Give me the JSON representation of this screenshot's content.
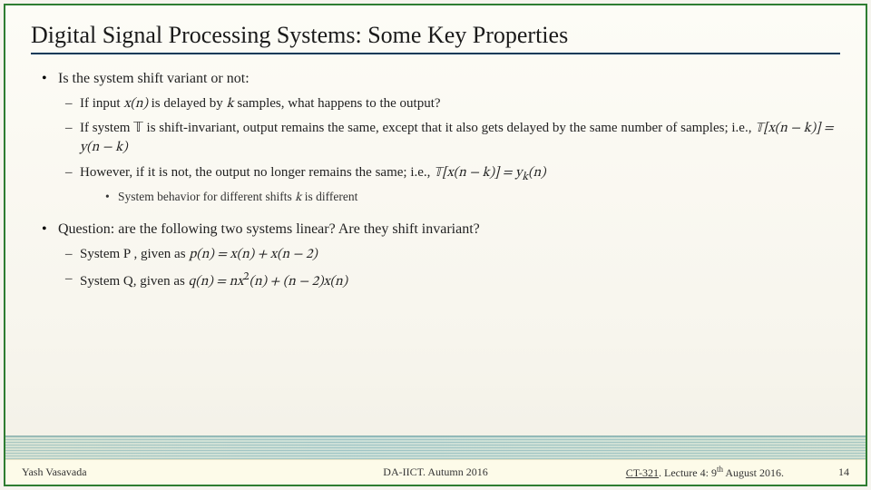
{
  "title": "Digital Signal Processing Systems: Some Key Properties",
  "bullets": {
    "b1": {
      "text": "Is the system shift variant or not:"
    },
    "b1_subs": {
      "s1_pre": "If input ",
      "s1_math1": "x(n)",
      "s1_mid": " is delayed by ",
      "s1_math2": "k",
      "s1_post": " samples, what happens to the output?",
      "s2_pre": "If system ",
      "s2_T": "𝕋",
      "s2_mid": " is shift-invariant, output remains the same, except that it also gets delayed by the same number of samples; i.e., ",
      "s2_eq": "𝕋[x(n − k)] = y(n − k)",
      "s3_pre": "However, if it is not, the output no longer remains the same; i.e., ",
      "s3_eq_left": "𝕋[x(n − k)] = ",
      "s3_eq_right": "y",
      "s3_eq_sub": "k",
      "s3_eq_tail": "(n)",
      "s3_sub1": "System behavior for different shifts ",
      "s3_sub1_k": "k",
      "s3_sub1_post": " is different"
    },
    "b2": {
      "text": "Question: are the following two systems linear? Are they shift invariant?"
    },
    "b2_subs": {
      "p_pre": "System P , given as ",
      "p_eq": "p(n) = x(n) + x(n − 2)",
      "q_pre": "System Q, given as ",
      "q_eq_a": "q(n) = n",
      "q_eq_b": "x",
      "q_eq_sup": "2",
      "q_eq_c": "(n) + (n − 2)x(n)"
    }
  },
  "footer": {
    "author": "Yash Vasavada",
    "center": "DA-IICT.  Autumn 2016",
    "course": "CT-321",
    "lecture_pre": ". Lecture 4:  9",
    "lecture_ord": "th",
    "lecture_post": " August 2016.",
    "page": "14"
  },
  "colors": {
    "frame": "#2e7d32",
    "rule": "#0a3a59",
    "footer_bg": "#fdfbe9"
  }
}
